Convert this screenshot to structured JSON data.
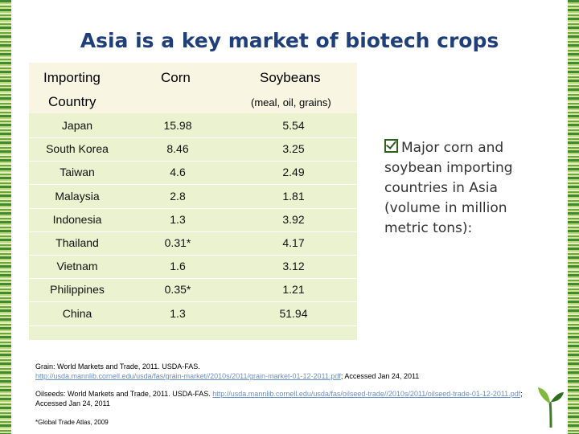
{
  "slide": {
    "title": "Asia is a key market of biotech crops"
  },
  "table": {
    "header": {
      "country_line1": "Importing",
      "country_line2": "Country",
      "corn": "Corn",
      "soybeans": "Soybeans",
      "soybeans_sub": "(meal, oil, grains)"
    },
    "rows": [
      {
        "country": "Japan",
        "corn": "15.98",
        "soybeans": "5.54"
      },
      {
        "country": "South Korea",
        "corn": "8.46",
        "soybeans": "3.25"
      },
      {
        "country": "Taiwan",
        "corn": "4.6",
        "soybeans": "2.49"
      },
      {
        "country": "Malaysia",
        "corn": "2.8",
        "soybeans": "1.81"
      },
      {
        "country": "Indonesia",
        "corn": "1.3",
        "soybeans": "3.92"
      },
      {
        "country": "Thailand",
        "corn": "0.31*",
        "soybeans": "4.17"
      },
      {
        "country": "Vietnam",
        "corn": "1.6",
        "soybeans": "3.12"
      },
      {
        "country": "Philippines",
        "corn": "0.35*",
        "soybeans": "1.21"
      },
      {
        "country": "China",
        "corn": "1.3",
        "soybeans": "51.94"
      }
    ]
  },
  "note": {
    "text": "Major corn and soybean importing countries in Asia (volume in million metric tons):"
  },
  "sources": {
    "grain_text": "Grain: World Markets and Trade, 2011. USDA-FAS.",
    "grain_link": "http://usda.mannlib.cornell.edu/usda/fas/grain-market//2010s/2011/grain-market-01-12-2011.pdf",
    "grain_accessed": "; Accessed Jan 24, 2011",
    "oilseeds_text": "Oilseeds: World Markets and Trade, 2011. USDA-FAS.",
    "oilseeds_link": "http://usda.mannlib.cornell.edu/usda/fas/oilseed-trade//2010s/2011/oilseed-trade-01-12-2011.pdf",
    "oilseeds_accessed": "; Accessed Jan 24, 2011",
    "footnote": "*Global Trade Atlas, 2009"
  },
  "colors": {
    "title": "#1f3f7a",
    "table_body": "#ebf2d0",
    "table_header": "#f8f6e3",
    "link": "#6b8fc7",
    "stripe_dark": "#3e8a2e",
    "stripe_light": "#b9d77a"
  },
  "icons": {
    "note_bullet": "checkbox-icon",
    "logo": "sprout-logo-icon"
  }
}
